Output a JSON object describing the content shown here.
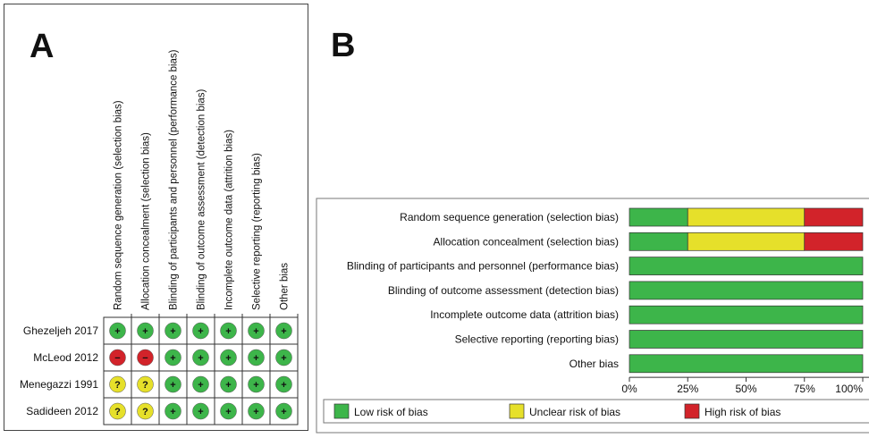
{
  "chart_data": [
    {
      "type": "table",
      "panel_label": "A",
      "columns": [
        "Random sequence generation (selection bias)",
        "Allocation concealment (selection bias)",
        "Blinding of participants and personnel (performance bias)",
        "Blinding of outcome assessment (detection bias)",
        "Incomplete outcome data (attrition bias)",
        "Selective reporting (reporting bias)",
        "Other bias"
      ],
      "rows": [
        {
          "study": "Ghezeljeh 2017",
          "judgements": [
            "low",
            "low",
            "low",
            "low",
            "low",
            "low",
            "low"
          ]
        },
        {
          "study": "McLeod 2012",
          "judgements": [
            "high",
            "high",
            "low",
            "low",
            "low",
            "low",
            "low"
          ]
        },
        {
          "study": "Menegazzi 1991",
          "judgements": [
            "unclear",
            "unclear",
            "low",
            "low",
            "low",
            "low",
            "low"
          ]
        },
        {
          "study": "Sadideen 2012",
          "judgements": [
            "unclear",
            "unclear",
            "low",
            "low",
            "low",
            "low",
            "low"
          ]
        }
      ],
      "symbols": {
        "low": "+",
        "high": "−",
        "unclear": "?"
      }
    },
    {
      "type": "bar",
      "stacked": true,
      "orientation": "horizontal",
      "panel_label": "B",
      "categories": [
        "Random sequence generation (selection bias)",
        "Allocation concealment (selection bias)",
        "Blinding of participants and personnel (performance bias)",
        "Blinding of outcome assessment (detection bias)",
        "Incomplete outcome data (attrition bias)",
        "Selective reporting (reporting bias)",
        "Other bias"
      ],
      "series": [
        {
          "name": "Low risk of bias",
          "key": "low",
          "values": [
            25,
            25,
            100,
            100,
            100,
            100,
            100
          ]
        },
        {
          "name": "Unclear risk of bias",
          "key": "unclear",
          "values": [
            50,
            50,
            0,
            0,
            0,
            0,
            0
          ]
        },
        {
          "name": "High risk of bias",
          "key": "high",
          "values": [
            25,
            25,
            0,
            0,
            0,
            0,
            0
          ]
        }
      ],
      "xlim": [
        0,
        100
      ],
      "xticks": [
        "0%",
        "25%",
        "50%",
        "75%",
        "100%"
      ],
      "legend_position": "bottom"
    }
  ],
  "colors": {
    "low": "#3db54a",
    "unclear": "#e6e02a",
    "high": "#d2232a",
    "border": "#333333"
  }
}
